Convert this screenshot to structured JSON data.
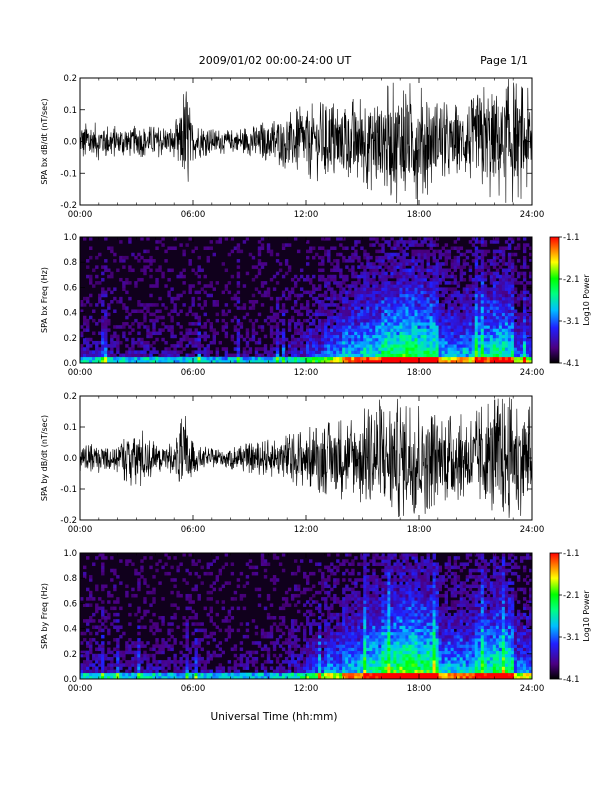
{
  "page": {
    "title": "2009/01/02  00:00-24:00 UT",
    "page_number": "Page 1/1",
    "xlabel": "Universal Time (hh:mm)"
  },
  "chart_data": [
    {
      "type": "line",
      "panel": "bx_timeseries",
      "ylabel": "SPA bx dB/dt (nT/sec)",
      "xlim": [
        0,
        24
      ],
      "ylim": [
        -0.2,
        0.2
      ],
      "x_tick_labels": [
        "00:00",
        "06:00",
        "12:00",
        "18:00",
        "24:00"
      ],
      "y_tick_labels": [
        "0.2",
        "0.1",
        "0.0",
        "-0.1",
        "-0.2"
      ],
      "series": [
        {
          "x_hours": [
            0,
            1,
            2,
            3,
            4,
            5,
            5.6,
            6,
            7,
            8,
            9,
            10,
            11,
            12,
            13,
            14,
            15,
            16,
            17,
            17.5,
            18,
            19,
            20,
            21,
            21.5,
            22,
            23,
            24
          ],
          "envelope": [
            0.06,
            0.06,
            0.05,
            0.05,
            0.05,
            0.05,
            0.2,
            0.06,
            0.04,
            0.04,
            0.05,
            0.07,
            0.09,
            0.12,
            0.13,
            0.14,
            0.15,
            0.17,
            0.2,
            0.2,
            0.2,
            0.13,
            0.12,
            0.14,
            0.2,
            0.2,
            0.2,
            0.16
          ]
        }
      ],
      "grid": false
    },
    {
      "type": "heatmap",
      "panel": "bx_spectrogram",
      "ylabel": "SPA bx Freq (Hz)",
      "xlim": [
        0,
        24
      ],
      "ylim": [
        0,
        1
      ],
      "x_tick_labels": [
        "00:00",
        "06:00",
        "12:00",
        "18:00",
        "24:00"
      ],
      "y_tick_labels": [
        "1.0",
        "0.8",
        "0.6",
        "0.4",
        "0.2",
        "0.0"
      ],
      "colorbar": {
        "label": "Log10 Power",
        "range": [
          -4.1,
          -1.1
        ],
        "tick_labels": [
          "-1.1",
          "-2.1",
          "-3.1",
          "-4.1"
        ]
      },
      "activity_by_hour": [
        0.15,
        0.15,
        0.12,
        0.15,
        0.12,
        0.12,
        0.12,
        0.1,
        0.1,
        0.1,
        0.12,
        0.2,
        0.3,
        0.4,
        0.5,
        0.55,
        0.65,
        0.7,
        0.65,
        0.45,
        0.45,
        0.55,
        0.6,
        0.35
      ]
    },
    {
      "type": "line",
      "panel": "by_timeseries",
      "ylabel": "SPA by dB/dt (nT/sec)",
      "xlim": [
        0,
        24
      ],
      "ylim": [
        -0.2,
        0.2
      ],
      "x_tick_labels": [
        "00:00",
        "06:00",
        "12:00",
        "18:00",
        "24:00"
      ],
      "y_tick_labels": [
        "0.2",
        "0.1",
        "0.0",
        "-0.1",
        "-0.2"
      ],
      "series": [
        {
          "x_hours": [
            0,
            1,
            2,
            3,
            4,
            5,
            5.6,
            6,
            7,
            8,
            9,
            10,
            11,
            12,
            13,
            14,
            15,
            16,
            17,
            17.5,
            18,
            19,
            20,
            21,
            21.5,
            22,
            23,
            24
          ],
          "envelope": [
            0.05,
            0.05,
            0.05,
            0.12,
            0.05,
            0.05,
            0.17,
            0.05,
            0.03,
            0.04,
            0.05,
            0.06,
            0.08,
            0.1,
            0.12,
            0.14,
            0.16,
            0.2,
            0.2,
            0.2,
            0.2,
            0.15,
            0.14,
            0.15,
            0.2,
            0.2,
            0.2,
            0.17
          ]
        }
      ],
      "grid": false
    },
    {
      "type": "heatmap",
      "panel": "by_spectrogram",
      "ylabel": "SPA by Freq (Hz)",
      "xlim": [
        0,
        24
      ],
      "ylim": [
        0,
        1
      ],
      "x_tick_labels": [
        "00:00",
        "06:00",
        "12:00",
        "18:00",
        "24:00"
      ],
      "y_tick_labels": [
        "1.0",
        "0.8",
        "0.6",
        "0.4",
        "0.2",
        "0.0"
      ],
      "colorbar": {
        "label": "Log10 Power",
        "range": [
          -4.1,
          -1.1
        ],
        "tick_labels": [
          "-1.1",
          "-2.1",
          "-3.1",
          "-4.1"
        ]
      },
      "activity_by_hour": [
        0.15,
        0.15,
        0.12,
        0.15,
        0.12,
        0.12,
        0.12,
        0.1,
        0.1,
        0.1,
        0.12,
        0.2,
        0.3,
        0.4,
        0.5,
        0.6,
        0.7,
        0.75,
        0.7,
        0.5,
        0.5,
        0.6,
        0.65,
        0.4
      ]
    }
  ]
}
